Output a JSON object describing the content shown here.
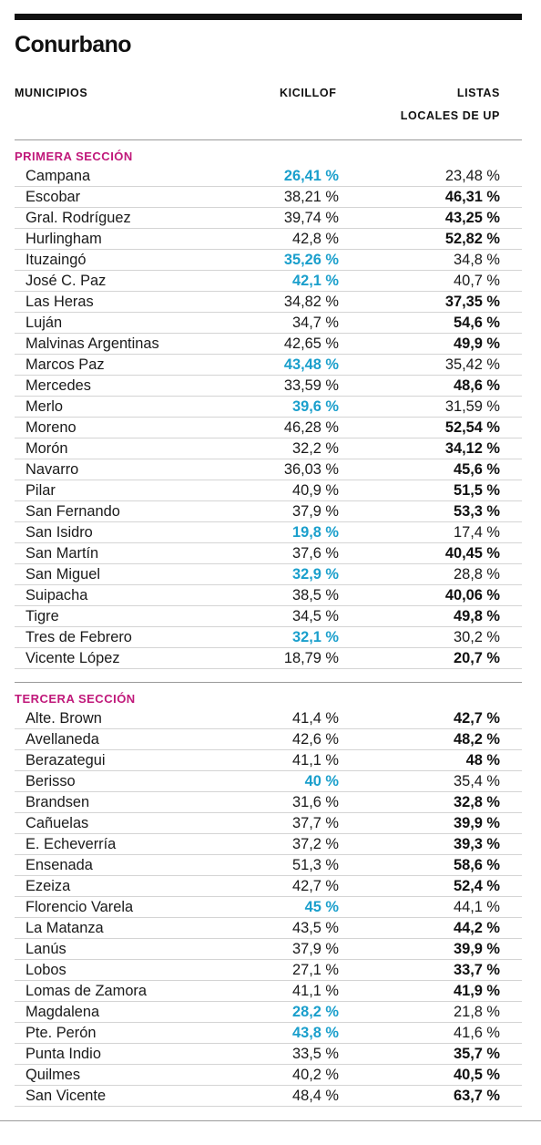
{
  "title": "Conurbano",
  "headers": {
    "municipios": "MUNICIPIOS",
    "kicillof": "KICILLOF",
    "listas_line1": "LISTAS",
    "listas_line2": "LOCALES DE UP"
  },
  "colors": {
    "section_title": "#c0187a",
    "kicillof_winner": "#1a9fcc",
    "text": "#1a1a1a"
  },
  "sections": [
    {
      "title": "PRIMERA SECCIÓN",
      "rows": [
        {
          "name": "Campana",
          "kicillof": "26,41 %",
          "listas": "23,48 %",
          "winner": "kicillof"
        },
        {
          "name": "Escobar",
          "kicillof": "38,21 %",
          "listas": "46,31 %",
          "winner": "listas"
        },
        {
          "name": "Gral. Rodríguez",
          "kicillof": "39,74 %",
          "listas": "43,25 %",
          "winner": "listas"
        },
        {
          "name": "Hurlingham",
          "kicillof": "42,8 %",
          "listas": "52,82 %",
          "winner": "listas"
        },
        {
          "name": "Ituzaingó",
          "kicillof": "35,26 %",
          "listas": "34,8 %",
          "winner": "kicillof"
        },
        {
          "name": "José C. Paz",
          "kicillof": "42,1 %",
          "listas": "40,7 %",
          "winner": "kicillof"
        },
        {
          "name": "Las Heras",
          "kicillof": "34,82 %",
          "listas": "37,35 %",
          "winner": "listas"
        },
        {
          "name": "Luján",
          "kicillof": "34,7 %",
          "listas": "54,6 %",
          "winner": "listas"
        },
        {
          "name": "Malvinas Argentinas",
          "kicillof": "42,65 %",
          "listas": "49,9 %",
          "winner": "listas"
        },
        {
          "name": "Marcos Paz",
          "kicillof": "43,48 %",
          "listas": "35,42 %",
          "winner": "kicillof"
        },
        {
          "name": "Mercedes",
          "kicillof": "33,59 %",
          "listas": "48,6 %",
          "winner": "listas"
        },
        {
          "name": "Merlo",
          "kicillof": "39,6 %",
          "listas": "31,59 %",
          "winner": "kicillof"
        },
        {
          "name": "Moreno",
          "kicillof": "46,28 %",
          "listas": "52,54 %",
          "winner": "listas"
        },
        {
          "name": "Morón",
          "kicillof": "32,2 %",
          "listas": "34,12 %",
          "winner": "listas"
        },
        {
          "name": "Navarro",
          "kicillof": "36,03 %",
          "listas": "45,6 %",
          "winner": "listas"
        },
        {
          "name": "Pilar",
          "kicillof": "40,9 %",
          "listas": "51,5 %",
          "winner": "listas"
        },
        {
          "name": "San Fernando",
          "kicillof": "37,9 %",
          "listas": "53,3 %",
          "winner": "listas"
        },
        {
          "name": "San Isidro",
          "kicillof": "19,8 %",
          "listas": "17,4 %",
          "winner": "kicillof"
        },
        {
          "name": "San Martín",
          "kicillof": "37,6 %",
          "listas": "40,45 %",
          "winner": "listas"
        },
        {
          "name": "San Miguel",
          "kicillof": "32,9 %",
          "listas": "28,8 %",
          "winner": "kicillof"
        },
        {
          "name": "Suipacha",
          "kicillof": "38,5 %",
          "listas": "40,06 %",
          "winner": "listas"
        },
        {
          "name": "Tigre",
          "kicillof": "34,5 %",
          "listas": "49,8 %",
          "winner": "listas"
        },
        {
          "name": "Tres de Febrero",
          "kicillof": "32,1 %",
          "listas": "30,2 %",
          "winner": "kicillof"
        },
        {
          "name": "Vicente López",
          "kicillof": "18,79 %",
          "listas": "20,7 %",
          "winner": "listas"
        }
      ]
    },
    {
      "title": "TERCERA SECCIÓN",
      "rows": [
        {
          "name": "Alte. Brown",
          "kicillof": "41,4 %",
          "listas": "42,7 %",
          "winner": "listas"
        },
        {
          "name": "Avellaneda",
          "kicillof": "42,6 %",
          "listas": "48,2 %",
          "winner": "listas"
        },
        {
          "name": "Berazategui",
          "kicillof": "41,1 %",
          "listas": "48 %",
          "winner": "listas"
        },
        {
          "name": "Berisso",
          "kicillof": "40 %",
          "listas": "35,4 %",
          "winner": "kicillof"
        },
        {
          "name": "Brandsen",
          "kicillof": "31,6 %",
          "listas": "32,8 %",
          "winner": "listas"
        },
        {
          "name": "Cañuelas",
          "kicillof": "37,7 %",
          "listas": "39,9 %",
          "winner": "listas"
        },
        {
          "name": "E. Echeverría",
          "kicillof": "37,2 %",
          "listas": "39,3 %",
          "winner": "listas"
        },
        {
          "name": "Ensenada",
          "kicillof": "51,3 %",
          "listas": "58,6 %",
          "winner": "listas"
        },
        {
          "name": "Ezeiza",
          "kicillof": "42,7 %",
          "listas": "52,4 %",
          "winner": "listas"
        },
        {
          "name": "Florencio Varela",
          "kicillof": "45 %",
          "listas": "44,1 %",
          "winner": "kicillof"
        },
        {
          "name": "La Matanza",
          "kicillof": "43,5 %",
          "listas": "44,2 %",
          "winner": "listas"
        },
        {
          "name": "Lanús",
          "kicillof": "37,9 %",
          "listas": "39,9 %",
          "winner": "listas"
        },
        {
          "name": "Lobos",
          "kicillof": "27,1 %",
          "listas": "33,7 %",
          "winner": "listas"
        },
        {
          "name": "Lomas de Zamora",
          "kicillof": "41,1 %",
          "listas": "41,9 %",
          "winner": "listas"
        },
        {
          "name": "Magdalena",
          "kicillof": "28,2 %",
          "listas": "21,8 %",
          "winner": "kicillof"
        },
        {
          "name": "Pte. Perón",
          "kicillof": "43,8 %",
          "listas": "41,6 %",
          "winner": "kicillof"
        },
        {
          "name": "Punta Indio",
          "kicillof": "33,5 %",
          "listas": "35,7 %",
          "winner": "listas"
        },
        {
          "name": "Quilmes",
          "kicillof": "40,2 %",
          "listas": "40,5 %",
          "winner": "listas"
        },
        {
          "name": "San Vicente",
          "kicillof": "48,4 %",
          "listas": "63,7 %",
          "winner": "listas"
        }
      ]
    }
  ]
}
